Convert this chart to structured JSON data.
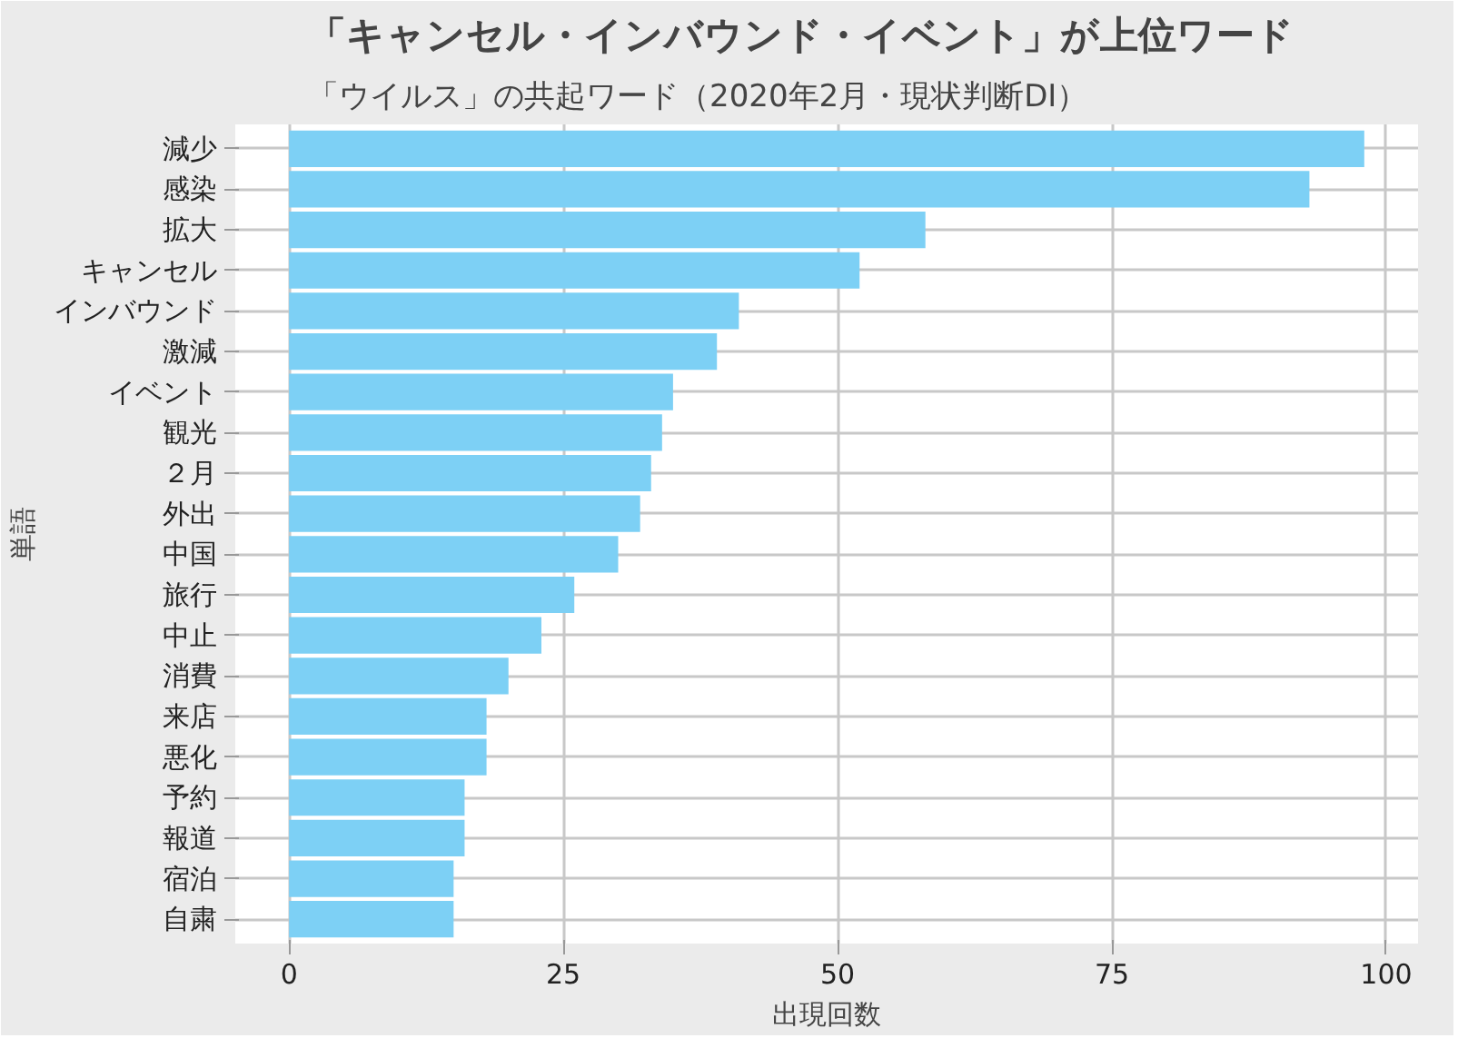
{
  "chart_data": {
    "type": "bar",
    "orientation": "horizontal",
    "title": "「キャンセル・インバウンド・イベント」が上位ワード",
    "subtitle": "「ウイルス」の共起ワード（2020年2月・現状判断DI）",
    "xlabel": "出現回数",
    "ylabel": "単語",
    "categories": [
      "減少",
      "感染",
      "拡大",
      "キャンセル",
      "インバウンド",
      "激減",
      "イベント",
      "観光",
      "２月",
      "外出",
      "中国",
      "旅行",
      "中止",
      "消費",
      "来店",
      "悪化",
      "予約",
      "報道",
      "宿泊",
      "自粛"
    ],
    "values": [
      98,
      93,
      58,
      52,
      41,
      39,
      35,
      34,
      33,
      32,
      30,
      26,
      23,
      20,
      18,
      18,
      16,
      16,
      15,
      15
    ],
    "color": "#7dd0f5",
    "xlim": [
      -4.9,
      102.9
    ],
    "xticks": [
      0,
      25,
      50,
      75,
      100
    ],
    "grid": true
  }
}
